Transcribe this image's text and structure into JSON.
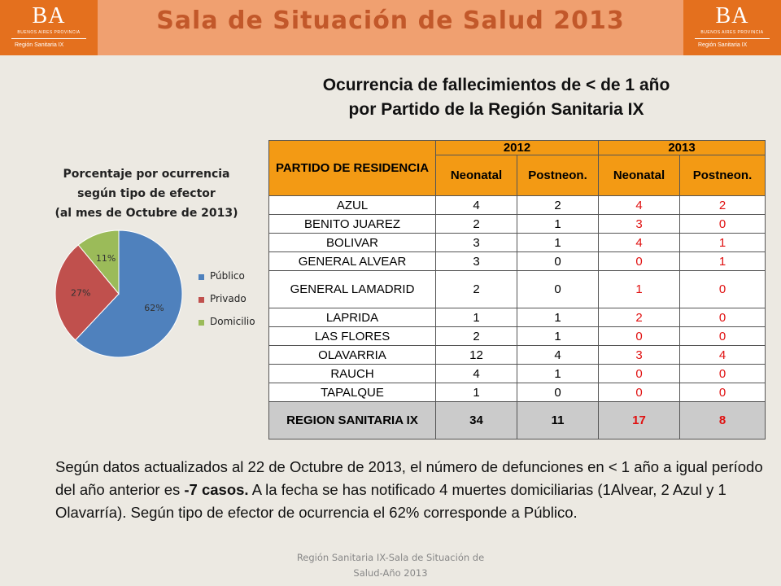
{
  "header": {
    "title": "Sala de Situación de Salud 2013",
    "logo_text": "BA",
    "logo_subtitle": "BUENOS AIRES PROVINCIA",
    "logo_region": "Región Sanitaria IX"
  },
  "main_title": {
    "line1": "Ocurrencia de fallecimientos de < de 1 año",
    "line2": "por Partido de la Región Sanitaria IX"
  },
  "chart": {
    "title_line1": "Porcentaje  por ocurrencia",
    "title_line2": "según tipo de efector",
    "title_line3": "(al mes de Octubre de 2013)"
  },
  "chart_data": {
    "type": "pie",
    "title": "Porcentaje  por ocurrencia según tipo de efector (al mes de Octubre de 2013)",
    "legend_position": "right",
    "categories": [
      "Público",
      "Privado",
      "Domicilio"
    ],
    "values": [
      62,
      27,
      11
    ],
    "labels": [
      "62%",
      "27%",
      "11%"
    ],
    "colors": [
      "#4f81bd",
      "#c0504d",
      "#9bbb59"
    ]
  },
  "table": {
    "header_partido": "PARTIDO DE RESIDENCIA",
    "years": [
      "2012",
      "2013"
    ],
    "subheaders": [
      "Neonatal",
      "Postneon.",
      "Neonatal",
      "Postneon."
    ],
    "rows": [
      {
        "name": "AZUL",
        "n12": "4",
        "p12": "2",
        "n13": "4",
        "p13": "2"
      },
      {
        "name": "BENITO JUAREZ",
        "n12": "2",
        "p12": "1",
        "n13": "3",
        "p13": "0"
      },
      {
        "name": "BOLIVAR",
        "n12": "3",
        "p12": "1",
        "n13": "4",
        "p13": "1"
      },
      {
        "name": "GENERAL ALVEAR",
        "n12": "3",
        "p12": "0",
        "n13": "0",
        "p13": "1"
      },
      {
        "name": "GENERAL LAMADRID",
        "n12": "2",
        "p12": "0",
        "n13": "1",
        "p13": "0"
      },
      {
        "name": "LAPRIDA",
        "n12": "1",
        "p12": "1",
        "n13": "2",
        "p13": "0"
      },
      {
        "name": "LAS FLORES",
        "n12": "2",
        "p12": "1",
        "n13": "0",
        "p13": "0"
      },
      {
        "name": "OLAVARRIA",
        "n12": "12",
        "p12": "4",
        "n13": "3",
        "p13": "4"
      },
      {
        "name": "RAUCH",
        "n12": "4",
        "p12": "1",
        "n13": "0",
        "p13": "0"
      },
      {
        "name": "TAPALQUE",
        "n12": "1",
        "p12": "0",
        "n13": "0",
        "p13": "0"
      }
    ],
    "total": {
      "name": "REGION SANITARIA IX",
      "n12": "34",
      "p12": "11",
      "n13": "17",
      "p13": "8"
    }
  },
  "paragraph": {
    "part1": "Según datos actualizados al 22 de Octubre de 2013, el número de defunciones en < 1 año a igual período del año anterior es ",
    "bold": "-7 casos.",
    "part2": " A la fecha se has notificado 4 muertes domiciliarias (1Alvear, 2 Azul y 1 Olavarría). Según tipo de efector de ocurrencia el 62% corresponde a Público."
  },
  "footer": {
    "line1": "Región Sanitaria IX-Sala de Situación de",
    "line2": "Salud-Año 2013"
  }
}
